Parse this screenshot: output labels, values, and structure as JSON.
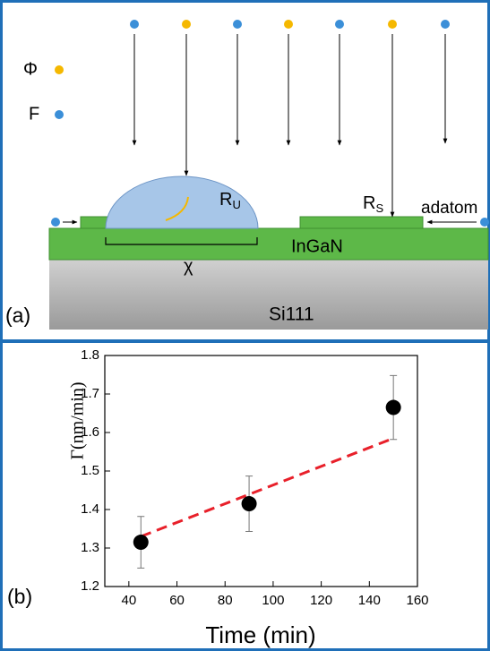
{
  "diagram": {
    "panel_label": "(a)",
    "legend": [
      {
        "label": "Φ",
        "color": "#f5b800"
      },
      {
        "label": "F",
        "color": "#3b8fd8"
      }
    ],
    "labels": {
      "ru": {
        "main": "R",
        "sub": "U"
      },
      "rs": {
        "main": "R",
        "sub": "S"
      },
      "adatom": "adatom",
      "chi": "χ",
      "layer": "InGaN",
      "substrate": "Si111"
    }
  },
  "chart_data": {
    "type": "scatter",
    "panel_label": "(b)",
    "x_label": "Time (min)",
    "y_label": "Γ(nm/min)",
    "xlim": [
      30,
      160
    ],
    "xticks": [
      40,
      60,
      80,
      100,
      120,
      140,
      160
    ],
    "ylim": [
      1.2,
      1.8
    ],
    "yticks": [
      1.2,
      1.3,
      1.4,
      1.5,
      1.6,
      1.7,
      1.8
    ],
    "series": [
      {
        "color": "#000000",
        "x": [
          45,
          90,
          150
        ],
        "values": [
          1.315,
          1.415,
          1.665
        ],
        "errors": [
          0.067,
          0.072,
          0.083
        ]
      }
    ],
    "fit": {
      "color": "#e8202a",
      "style": "dashed",
      "x": [
        45,
        150
      ],
      "values": [
        1.33,
        1.585
      ]
    }
  }
}
